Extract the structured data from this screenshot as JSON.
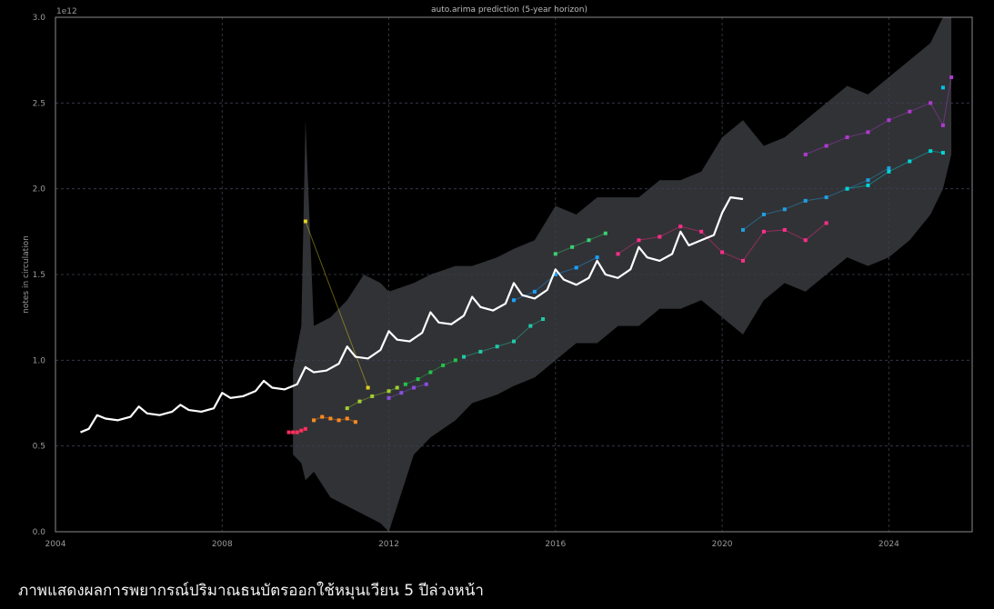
{
  "caption": "ภาพแสดงผลการพยากรณ์ปริมาณธนบัตรออกใช้หมุนเวียน 5 ปีล่วงหน้า",
  "colors": {
    "background": "#000000",
    "actual": "#ffffff",
    "band": "#3a3b40",
    "grid": "#3b3f52",
    "axis_text": "#9a9a9a"
  },
  "chart_data": {
    "type": "line",
    "title": "auto.arima prediction (5-year horizon)",
    "xlabel": "",
    "ylabel": "notes in circulation",
    "y_multiplier_label": "1e12",
    "xlim": [
      2004,
      2026
    ],
    "ylim": [
      0.0,
      3.0
    ],
    "x_ticks": [
      "2004",
      "2008",
      "2012",
      "2016",
      "2020",
      "2024"
    ],
    "y_ticks": [
      "0.0",
      "0.5",
      "1.0",
      "1.5",
      "2.0",
      "2.5",
      "3.0"
    ],
    "grid": true,
    "series": [
      {
        "role": "actual",
        "color": "#ffffff",
        "x": [
          2004.6,
          2004.8,
          2005.0,
          2005.2,
          2005.5,
          2005.8,
          2006.0,
          2006.2,
          2006.5,
          2006.8,
          2007.0,
          2007.2,
          2007.5,
          2007.8,
          2008.0,
          2008.2,
          2008.5,
          2008.8,
          2009.0,
          2009.2,
          2009.5,
          2009.8,
          2010.0,
          2010.2,
          2010.5,
          2010.8,
          2011.0,
          2011.2,
          2011.5,
          2011.8,
          2012.0,
          2012.2,
          2012.5,
          2012.8,
          2013.0,
          2013.2,
          2013.5,
          2013.8,
          2014.0,
          2014.2,
          2014.5,
          2014.8,
          2015.0,
          2015.2,
          2015.5,
          2015.8,
          2016.0,
          2016.2,
          2016.5,
          2016.8,
          2017.0,
          2017.2,
          2017.5,
          2017.8,
          2018.0,
          2018.2,
          2018.5,
          2018.8,
          2019.0,
          2019.2,
          2019.5,
          2019.8,
          2020.0,
          2020.2,
          2020.5
        ],
        "y": [
          0.58,
          0.6,
          0.68,
          0.66,
          0.65,
          0.67,
          0.73,
          0.69,
          0.68,
          0.7,
          0.74,
          0.71,
          0.7,
          0.72,
          0.81,
          0.78,
          0.79,
          0.82,
          0.88,
          0.84,
          0.83,
          0.86,
          0.96,
          0.93,
          0.94,
          0.98,
          1.08,
          1.02,
          1.01,
          1.06,
          1.17,
          1.12,
          1.11,
          1.16,
          1.28,
          1.22,
          1.21,
          1.26,
          1.37,
          1.31,
          1.29,
          1.33,
          1.45,
          1.38,
          1.36,
          1.41,
          1.53,
          1.47,
          1.44,
          1.48,
          1.58,
          1.5,
          1.48,
          1.53,
          1.66,
          1.6,
          1.58,
          1.62,
          1.75,
          1.67,
          1.7,
          1.73,
          1.86,
          1.95,
          1.94
        ]
      },
      {
        "role": "forecast",
        "color": "#ff2f5a",
        "x": [
          2009.6,
          2009.7,
          2009.8,
          2009.9,
          2010.0
        ],
        "y": [
          0.58,
          0.58,
          0.58,
          0.59,
          0.6
        ]
      },
      {
        "role": "forecast",
        "color": "#ff8a1e",
        "x": [
          2010.2,
          2010.4,
          2010.6,
          2010.8,
          2011.0,
          2011.2
        ],
        "y": [
          0.65,
          0.67,
          0.66,
          0.65,
          0.66,
          0.64
        ]
      },
      {
        "role": "forecast",
        "color": "#e0d020",
        "x": [
          2010.0,
          2011.5
        ],
        "y": [
          1.81,
          0.84
        ]
      },
      {
        "role": "forecast",
        "color": "#9fd030",
        "x": [
          2011.0,
          2011.3,
          2011.6,
          2012.0,
          2012.2
        ],
        "y": [
          0.72,
          0.76,
          0.79,
          0.82,
          0.84
        ]
      },
      {
        "role": "forecast",
        "color": "#23c24a",
        "x": [
          2012.4,
          2012.7,
          2013.0,
          2013.3,
          2013.6
        ],
        "y": [
          0.86,
          0.89,
          0.93,
          0.97,
          1.0
        ]
      },
      {
        "role": "forecast",
        "color": "#8a4fe0",
        "x": [
          2012.0,
          2012.3,
          2012.6,
          2012.9
        ],
        "y": [
          0.78,
          0.81,
          0.84,
          0.86
        ]
      },
      {
        "role": "forecast",
        "color": "#22c9a8",
        "x": [
          2013.8,
          2014.2,
          2014.6,
          2015.0,
          2015.4,
          2015.7
        ],
        "y": [
          1.02,
          1.05,
          1.08,
          1.11,
          1.2,
          1.24
        ]
      },
      {
        "role": "forecast",
        "color": "#1aa0ff",
        "x": [
          2015.0,
          2015.5,
          2016.0,
          2016.5,
          2017.0
        ],
        "y": [
          1.35,
          1.4,
          1.5,
          1.54,
          1.6
        ]
      },
      {
        "role": "forecast",
        "color": "#3ad070",
        "x": [
          2016.0,
          2016.4,
          2016.8,
          2017.2
        ],
        "y": [
          1.62,
          1.66,
          1.7,
          1.74
        ]
      },
      {
        "role": "forecast",
        "color": "#ff2d8a",
        "x": [
          2017.5,
          2018.0,
          2018.5,
          2019.0,
          2019.5,
          2020.0,
          2020.5,
          2021.0,
          2021.5,
          2022.0,
          2022.5
        ],
        "y": [
          1.62,
          1.7,
          1.72,
          1.78,
          1.75,
          1.63,
          1.58,
          1.75,
          1.76,
          1.7,
          1.8
        ]
      },
      {
        "role": "forecast",
        "color": "#1f9fe0",
        "x": [
          2020.5,
          2021.0,
          2021.5,
          2022.0,
          2022.5,
          2023.0,
          2023.5,
          2024.0
        ],
        "y": [
          1.76,
          1.85,
          1.88,
          1.93,
          1.95,
          2.0,
          2.05,
          2.12
        ]
      },
      {
        "role": "forecast",
        "color": "#00d6d6",
        "x": [
          2023.0,
          2023.5,
          2024.0,
          2024.5,
          2025.0,
          2025.3
        ],
        "y": [
          2.0,
          2.02,
          2.1,
          2.16,
          2.22,
          2.21
        ]
      },
      {
        "role": "forecast",
        "color": "#b03ad0",
        "x": [
          2022.0,
          2022.5,
          2023.0,
          2023.5,
          2024.0,
          2024.5,
          2025.0,
          2025.3,
          2025.5
        ],
        "y": [
          2.2,
          2.25,
          2.3,
          2.33,
          2.4,
          2.45,
          2.5,
          2.37,
          2.65
        ]
      },
      {
        "role": "forecast",
        "color": "#00c4e4",
        "x": [
          2025.3
        ],
        "y": [
          2.59
        ]
      }
    ],
    "interval_band": {
      "x": [
        2009.7,
        2009.9,
        2010.0,
        2010.2,
        2010.6,
        2011.0,
        2011.4,
        2011.8,
        2012.0,
        2012.6,
        2013.0,
        2013.6,
        2014.0,
        2014.6,
        2015.0,
        2015.5,
        2016.0,
        2016.5,
        2017.0,
        2017.5,
        2018.0,
        2018.5,
        2019.0,
        2019.5,
        2020.0,
        2020.5,
        2021.0,
        2021.5,
        2022.0,
        2022.5,
        2023.0,
        2023.5,
        2024.0,
        2024.5,
        2025.0,
        2025.3,
        2025.5
      ],
      "upper": [
        0.95,
        1.2,
        2.4,
        1.2,
        1.25,
        1.35,
        1.5,
        1.45,
        1.4,
        1.45,
        1.5,
        1.55,
        1.55,
        1.6,
        1.65,
        1.7,
        1.9,
        1.85,
        1.95,
        1.95,
        1.95,
        2.05,
        2.05,
        2.1,
        2.3,
        2.4,
        2.25,
        2.3,
        2.4,
        2.5,
        2.6,
        2.55,
        2.65,
        2.75,
        2.85,
        3.0,
        3.0
      ],
      "lower": [
        0.45,
        0.4,
        0.3,
        0.35,
        0.2,
        0.15,
        0.1,
        0.05,
        0.0,
        0.45,
        0.55,
        0.65,
        0.75,
        0.8,
        0.85,
        0.9,
        1.0,
        1.1,
        1.1,
        1.2,
        1.2,
        1.3,
        1.3,
        1.35,
        1.25,
        1.15,
        1.35,
        1.45,
        1.4,
        1.5,
        1.6,
        1.55,
        1.6,
        1.7,
        1.85,
        2.0,
        2.2
      ]
    }
  }
}
